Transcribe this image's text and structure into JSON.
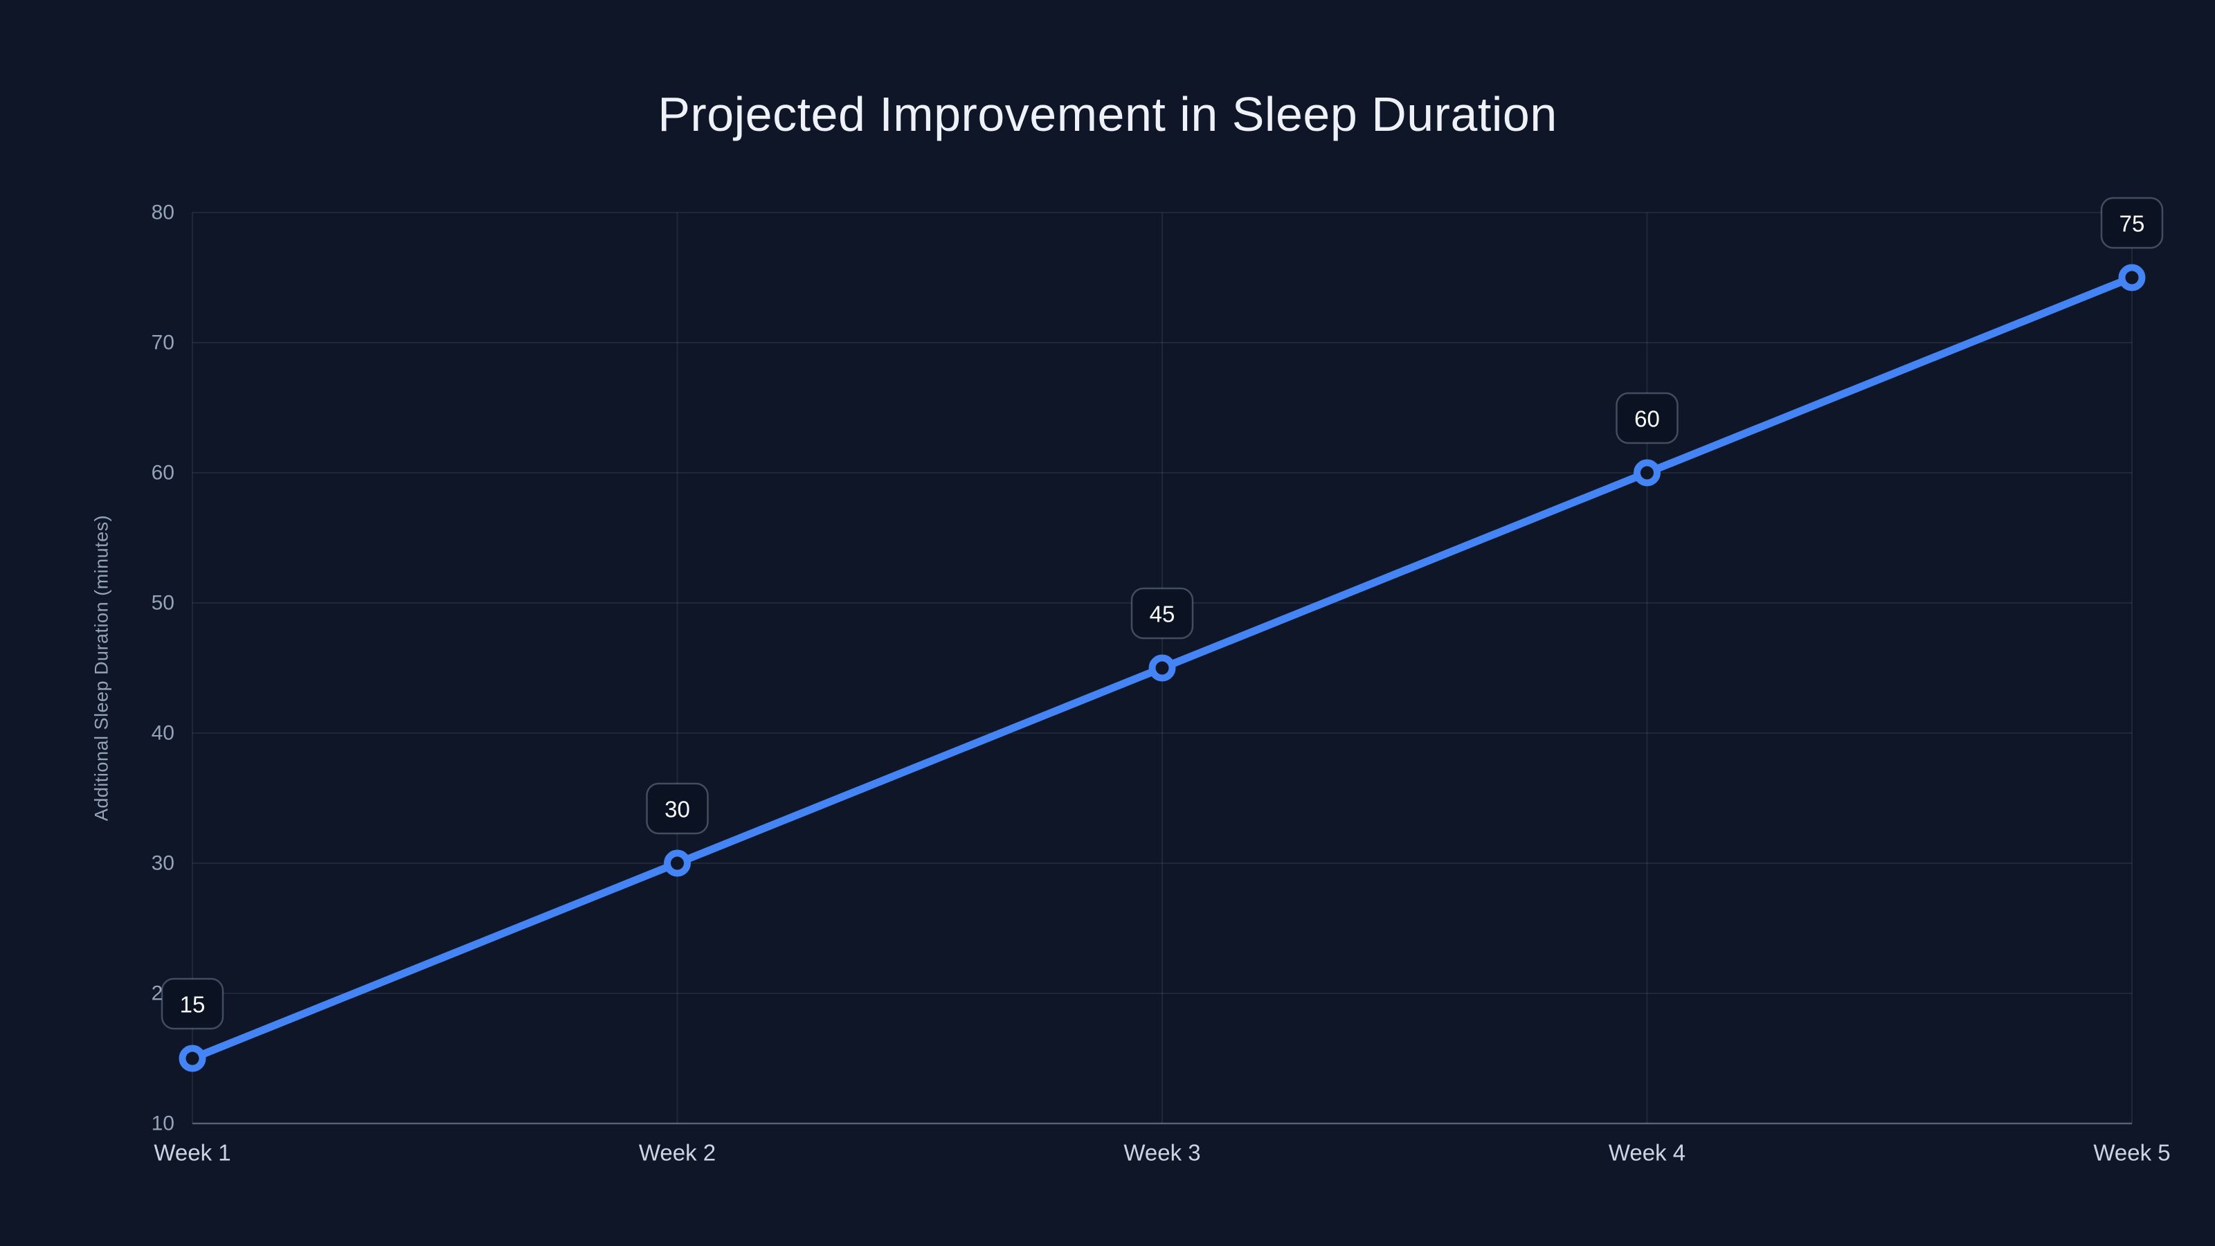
{
  "page": {
    "background_color": "#0e1627"
  },
  "chart_data": {
    "type": "line",
    "title": "Projected Improvement in Sleep Duration",
    "xlabel": "",
    "ylabel": "Additional Sleep Duration (minutes)",
    "categories": [
      "Week 1",
      "Week 2",
      "Week 3",
      "Week 4",
      "Week 5"
    ],
    "series": [
      {
        "name": "Additional Sleep Duration (minutes)",
        "values": [
          15,
          30,
          45,
          60,
          75
        ]
      }
    ],
    "point_labels": [
      "15",
      "30",
      "45",
      "60",
      "75"
    ],
    "ylim": [
      10,
      80
    ],
    "yticks": [
      10,
      20,
      30,
      40,
      50,
      60,
      70,
      80
    ],
    "grid": true,
    "legend_position": "none",
    "colors": {
      "background": "#0e1627",
      "title_text": "#eef2f8",
      "series_line": "#4584f4",
      "marker_ring": "#4584f4",
      "marker_fill": "#0e1627",
      "gridline": "#94a3b821",
      "axis_line": "#94a3b87a",
      "y_tick_text": "#94a3b8",
      "x_tick_text": "#cbd5e1",
      "axis_title_text": "#94a3b8",
      "badge_background": "#0b1322",
      "badge_border": "#94a3b866",
      "badge_text": "#f8fafc"
    }
  }
}
